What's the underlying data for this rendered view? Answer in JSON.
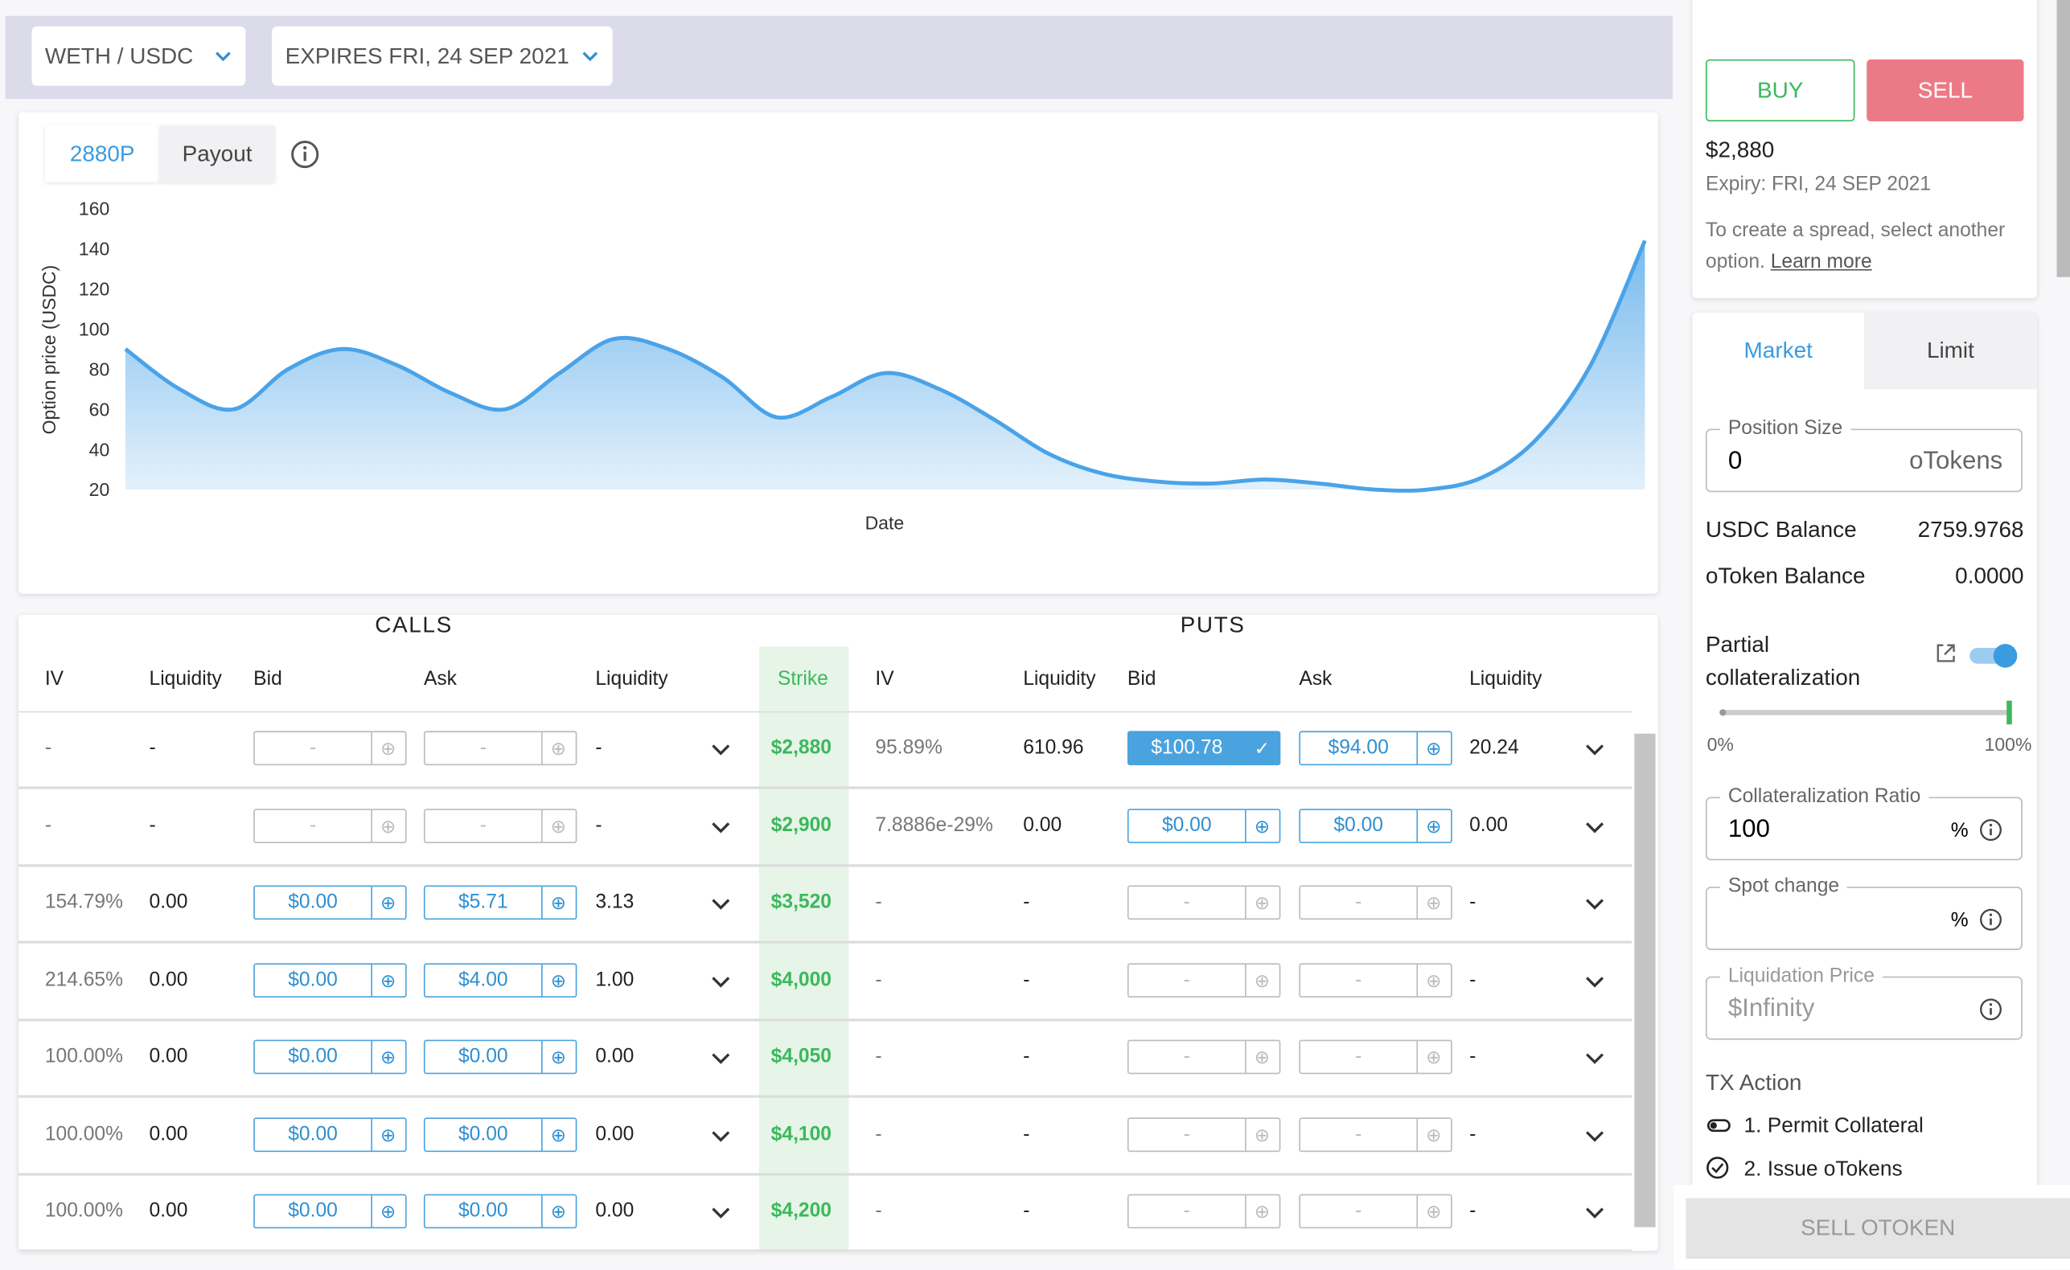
{
  "header": {
    "pair": "WETH / USDC",
    "expiry": "EXPIRES FRI, 24 SEP 2021"
  },
  "chart": {
    "type": "area",
    "tabs": [
      "2880P",
      "Payout"
    ],
    "y_label": "Option price (USDC)",
    "x_label": "Date",
    "ylim": [
      20,
      160
    ],
    "yticks": [
      20,
      40,
      60,
      80,
      100,
      120,
      140,
      160
    ],
    "color": "#4aa3e8",
    "values": [
      90,
      70,
      60,
      80,
      90,
      82,
      68,
      60,
      78,
      95,
      90,
      76,
      56,
      66,
      78,
      70,
      55,
      38,
      28,
      24,
      23,
      25,
      23,
      20,
      20,
      26,
      45,
      82,
      144
    ]
  },
  "table": {
    "groups": [
      "CALLS",
      "PUTS"
    ],
    "columns": [
      "IV",
      "Liquidity",
      "Bid",
      "Ask",
      "Liquidity",
      "Strike",
      "IV",
      "Liquidity",
      "Bid",
      "Ask",
      "Liquidity"
    ],
    "rows": [
      [
        "-",
        "-",
        "-",
        "-",
        "-",
        "$2,880",
        "95.89%",
        "610.96",
        "$100.78",
        "$94.00",
        "20.24"
      ],
      [
        "-",
        "-",
        "-",
        "-",
        "-",
        "$2,900",
        "7.8886e-29%",
        "0.00",
        "$0.00",
        "$0.00",
        "0.00"
      ],
      [
        "154.79%",
        "0.00",
        "$0.00",
        "$5.71",
        "3.13",
        "$3,520",
        "-",
        "-",
        "-",
        "-",
        "-"
      ],
      [
        "214.65%",
        "0.00",
        "$0.00",
        "$4.00",
        "1.00",
        "$4,000",
        "-",
        "-",
        "-",
        "-",
        "-"
      ],
      [
        "100.00%",
        "0.00",
        "$0.00",
        "$0.00",
        "0.00",
        "$4,050",
        "-",
        "-",
        "-",
        "-",
        "-"
      ],
      [
        "100.00%",
        "0.00",
        "$0.00",
        "$0.00",
        "0.00",
        "$4,100",
        "-",
        "-",
        "-",
        "-",
        "-"
      ],
      [
        "100.00%",
        "0.00",
        "$0.00",
        "$0.00",
        "0.00",
        "$4,200",
        "-",
        "-",
        "-",
        "-",
        "-"
      ]
    ]
  },
  "order": {
    "buy": "BUY",
    "sell": "SELL",
    "price": "$2,880",
    "expiry": "Expiry: FRI, 24 SEP 2021",
    "spread_text": "To create a spread, select another option.",
    "learn_more": "Learn more",
    "tabs": [
      "Market",
      "Limit"
    ],
    "position_size": {
      "label": "Position Size",
      "value": "0",
      "unit": "oTokens"
    },
    "balances": [
      {
        "label": "USDC Balance",
        "value": "2759.9768"
      },
      {
        "label": "oToken Balance",
        "value": "0.0000"
      }
    ],
    "partial": "Partial collateralization",
    "slider_min": "0%",
    "slider_max": "100%",
    "collateral_ratio": {
      "label": "Collateralization Ratio",
      "value": "100",
      "unit": "%"
    },
    "spot_change": {
      "label": "Spot change",
      "unit": "%"
    },
    "liquidation": {
      "label": "Liquidation Price",
      "value": "$Infinity"
    },
    "tx_action": "TX Action",
    "steps": [
      "1. Permit Collateral",
      "2. Issue oTokens"
    ],
    "submit": "SELL OTOKEN"
  }
}
